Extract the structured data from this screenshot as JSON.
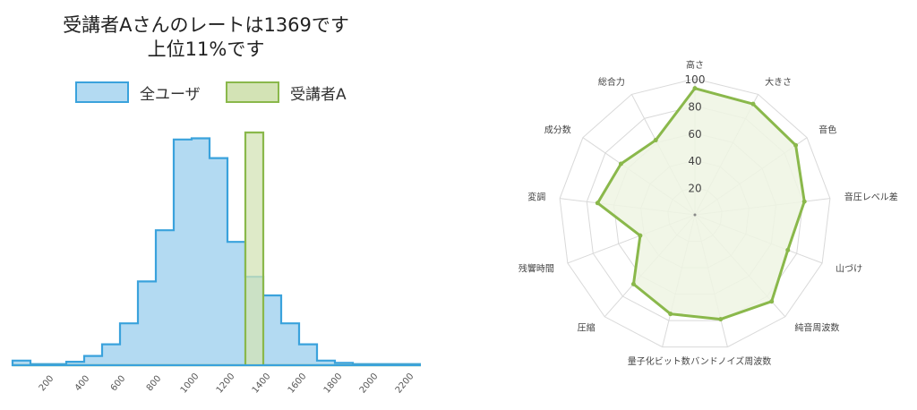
{
  "title": {
    "line1": "受講者Aさんのレートは1369です",
    "line2": "上位11%です"
  },
  "colors": {
    "users_fill": "#b3daf2",
    "users_stroke": "#3aa2dc",
    "a_fill": "#d3e3b5",
    "a_stroke": "#8ab84b",
    "radar_fill": "#eef4e3",
    "grid": "#d9d9d9"
  },
  "chart_data": [
    {
      "type": "bar",
      "subtype": "histogram",
      "title": "受講者Aさんのレートは1369です 上位11%です",
      "x_tick_labels": [
        "200",
        "400",
        "600",
        "800",
        "1000",
        "1200",
        "1400",
        "1600",
        "1800",
        "2000",
        "2200"
      ],
      "bin_edges": [
        0,
        100,
        200,
        300,
        400,
        500,
        600,
        700,
        800,
        900,
        1000,
        1100,
        1200,
        1300,
        1400,
        1500,
        1600,
        1700,
        1800,
        1900,
        2000,
        2100,
        2200,
        2300
      ],
      "series": [
        {
          "name": "全ユーザ",
          "values": [
            0.02,
            0.005,
            0.005,
            0.015,
            0.04,
            0.09,
            0.18,
            0.36,
            0.58,
            0.97,
            0.975,
            0.89,
            0.53,
            0.38,
            0.3,
            0.18,
            0.09,
            0.02,
            0.01,
            0.005,
            0.005,
            0.005,
            0.005
          ]
        },
        {
          "name": "受講者A",
          "values": [
            0,
            0,
            0,
            0,
            0,
            0,
            0,
            0,
            0,
            0,
            0,
            0,
            0,
            1.0,
            0,
            0,
            0,
            0,
            0,
            0,
            0,
            0,
            0
          ]
        }
      ],
      "legend": [
        "全ユーザ",
        "受講者A"
      ],
      "legend_position": "top"
    },
    {
      "type": "radar",
      "categories": [
        "高さ",
        "大きさ",
        "音色",
        "音圧レベル差",
        "山づけ",
        "純音周波数",
        "バンドノイズ周波数",
        "量子化ビット数",
        "圧縮",
        "残響時間",
        "変調",
        "成分数",
        "総合力"
      ],
      "values": [
        93,
        92,
        90,
        81,
        73,
        85,
        79,
        75,
        68,
        43,
        72,
        66,
        62
      ],
      "r_ticks": [
        "20",
        "40",
        "60",
        "80",
        "100"
      ],
      "rlim": [
        0,
        100
      ]
    }
  ]
}
